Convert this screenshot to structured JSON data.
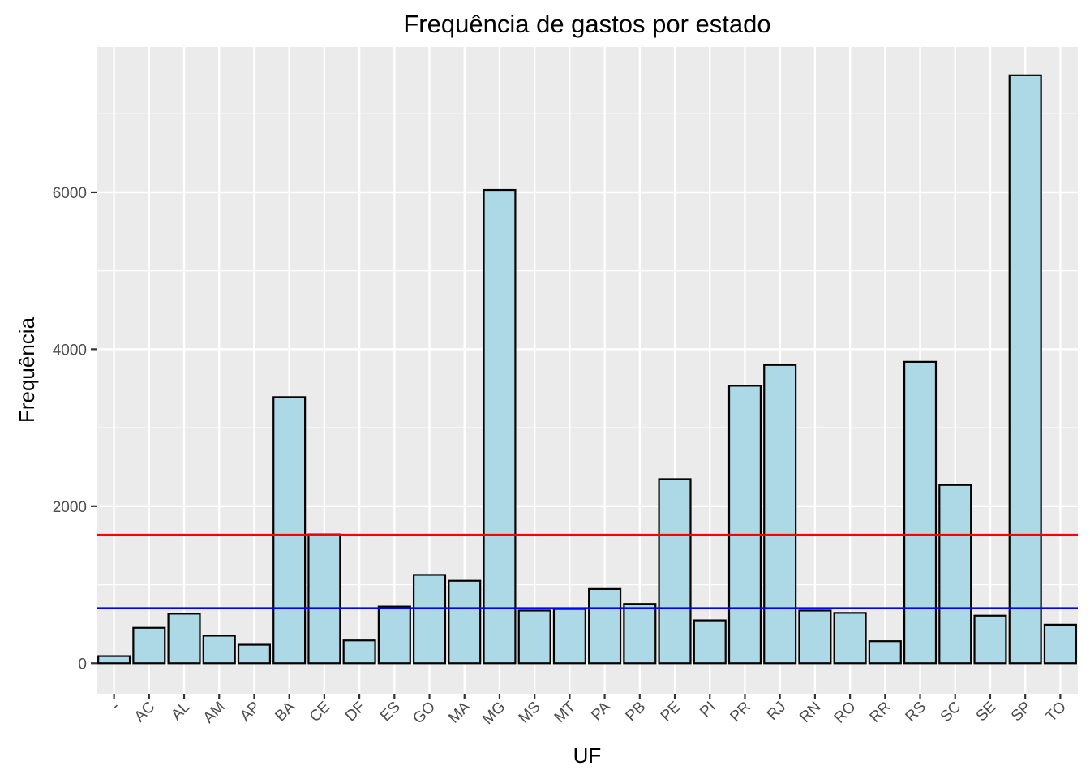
{
  "chart_data": {
    "type": "bar",
    "title": "Frequência de gastos por estado",
    "xlabel": "UF",
    "ylabel": "Frequência",
    "categories": [
      "-",
      "AC",
      "AL",
      "AM",
      "AP",
      "BA",
      "CE",
      "DF",
      "ES",
      "GO",
      "MA",
      "MG",
      "MS",
      "MT",
      "PA",
      "PB",
      "PE",
      "PI",
      "PR",
      "RJ",
      "RN",
      "RO",
      "RR",
      "RS",
      "SC",
      "SE",
      "SP",
      "TO"
    ],
    "values": [
      90,
      450,
      630,
      350,
      235,
      3390,
      1640,
      290,
      720,
      1125,
      1050,
      6030,
      670,
      690,
      945,
      755,
      2345,
      545,
      3535,
      3800,
      670,
      640,
      280,
      3840,
      2270,
      605,
      7490,
      490
    ],
    "yticks": [
      0,
      2000,
      4000,
      6000
    ],
    "ylim": [
      -390,
      7850
    ],
    "reference_lines": [
      {
        "value": 1635,
        "color": "#ff0000"
      },
      {
        "value": 700,
        "color": "#0000ff"
      }
    ],
    "colors": {
      "bar_fill": "#add8e6",
      "bar_stroke": "#000000",
      "panel_background": "#ebebeb",
      "grid": "#ffffff"
    },
    "grid": true,
    "legend": "none"
  }
}
